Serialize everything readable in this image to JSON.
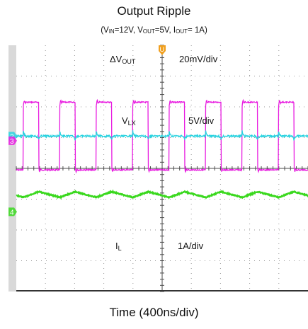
{
  "chart_data": {
    "type": "line",
    "title": "Output Ripple",
    "subtitle": {
      "vin_label": "V",
      "vin_sub": "IN",
      "vin_value": "=12V, ",
      "vout_label": "V",
      "vout_sub": "OUT",
      "vout_value": "=5V, ",
      "iout_label": "I",
      "iout_sub": "OUT",
      "iout_value": "= 1A)",
      "open": "("
    },
    "xlabel": "Time (400ns/div)",
    "x_divisions": 10,
    "y_divisions": 8,
    "grid": true,
    "switching_periods_on_screen": 8,
    "series": [
      {
        "name": "ΔV",
        "name_sub": "OUT",
        "scale": "20mV/div",
        "marker": "2",
        "color": "#29d3e0",
        "level_div": 2.95
      },
      {
        "name": "V",
        "name_sub": "LX",
        "scale": "5V/div",
        "marker": "3",
        "color": "#e81ce0",
        "high_div": 1.85,
        "low_div": 4.05,
        "duty": 0.42
      },
      {
        "name": "I",
        "name_sub": "L",
        "scale": "1A/div",
        "marker": "4",
        "color": "#3ad81e",
        "level_div": 4.85
      }
    ],
    "trigger_marker": "U"
  }
}
